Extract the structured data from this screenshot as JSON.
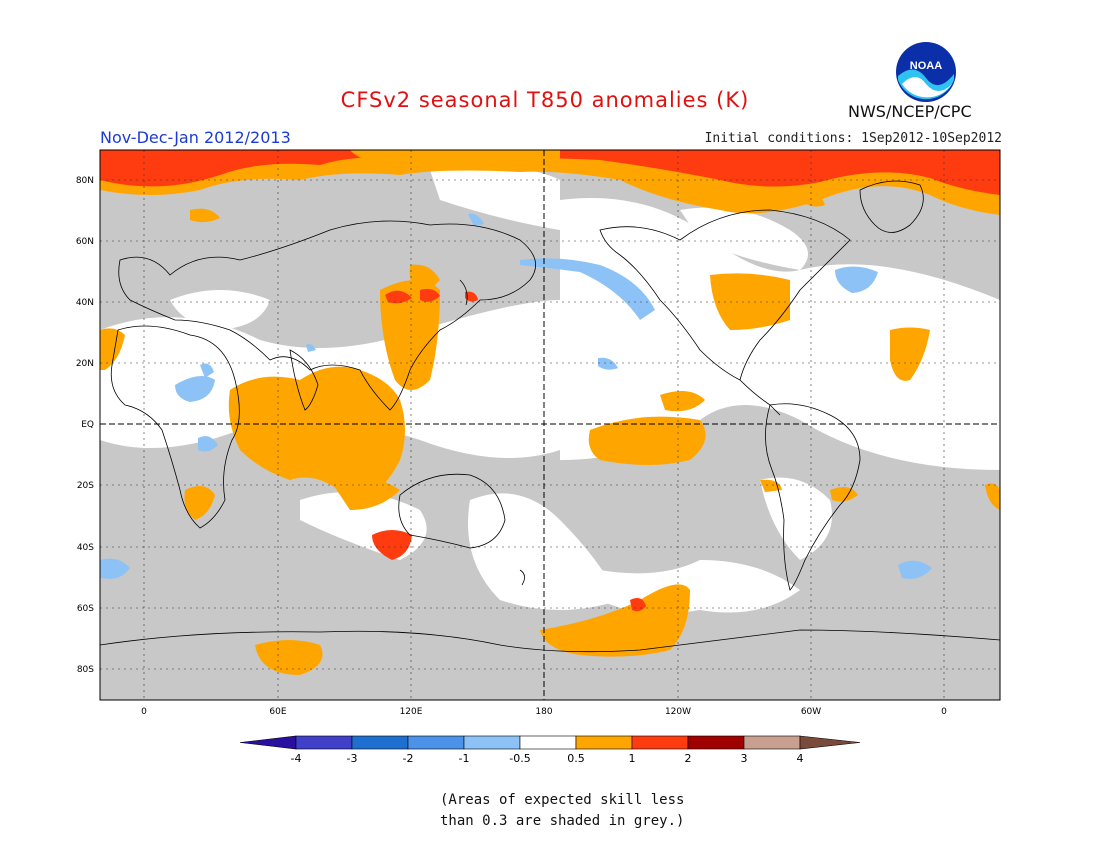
{
  "title": "CFSv2 seasonal T850 anomalies (K)",
  "period": "Nov-Dec-Jan 2012/2013",
  "initial_conditions": "Initial conditions: 1Sep2012-10Sep2012",
  "agency": "NWS/NCEP/CPC",
  "logo_text": "NOAA",
  "lat_labels": [
    "80N",
    "60N",
    "40N",
    "20N",
    "EQ",
    "20S",
    "40S",
    "60S",
    "80S"
  ],
  "lon_labels": [
    "0",
    "60E",
    "120E",
    "180",
    "120W",
    "60W",
    "0"
  ],
  "colorbar": {
    "ticks": [
      "-4",
      "-3",
      "-2",
      "-1",
      "-0.5",
      "0.5",
      "1",
      "2",
      "3",
      "4"
    ],
    "colors": [
      "#2a10a0",
      "#4040c8",
      "#1f6fd0",
      "#4a93e8",
      "#8cc2f5",
      "#ffffff",
      "#ffa500",
      "#ff3b10",
      "#a00000",
      "#c8a090",
      "#7a4a3a"
    ]
  },
  "note": [
    "(Areas of expected skill less",
    "than 0.3 are shaded in grey.)"
  ],
  "palette": {
    "skill_grey": "#c8c8c8",
    "warm": "#ffa500",
    "hot": "#ff3b10",
    "cool": "#8cc2f5",
    "coast": "#000000"
  }
}
